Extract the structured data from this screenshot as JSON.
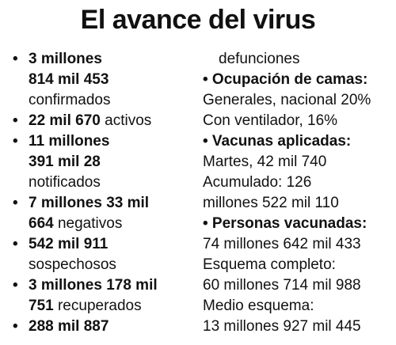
{
  "title": "El avance del virus",
  "bullet_glyph": "•",
  "left": {
    "confirmados": {
      "line1_bold": "3 millones",
      "line2_bold": "814 mil 453",
      "line3": "confirmados"
    },
    "activos": {
      "bold": "22 mil 670",
      "text": " activos"
    },
    "notificados": {
      "line1_bold": "11 millones",
      "line2_bold": "391 mil 28",
      "line3": "notificados"
    },
    "negativos": {
      "line1_bold": "7 millones 33 mil",
      "line2_bold": "664",
      "line2_text": " negativos"
    },
    "sospechosos": {
      "line1_bold": "542 mil 911",
      "line2": "sospechosos"
    },
    "recuperados": {
      "line1_bold": "3 millones 178 mil",
      "line2_bold": "751",
      "line2_text": " recuperados"
    },
    "defunciones": {
      "line1_bold": "288 mil 887"
    }
  },
  "right": {
    "defunciones_cont": "defunciones",
    "camas": {
      "heading": "• Ocupación de camas:",
      "line1": "Generales, nacional 20%",
      "line2": "Con ventilador, 16%"
    },
    "vacunas": {
      "heading": "• Vacunas aplicadas:",
      "line1": "Martes, 42 mil 740",
      "line2": "Acumulado: 126",
      "line3": "millones 522 mil 110"
    },
    "personas": {
      "heading": "• Personas vacunadas:",
      "line1": "74 millones 642 mil 433",
      "line2": "Esquema completo:",
      "line3": "60 millones 714 mil 988",
      "line4": "Medio esquema:",
      "line5": "13 millones 927 mil 445"
    }
  }
}
